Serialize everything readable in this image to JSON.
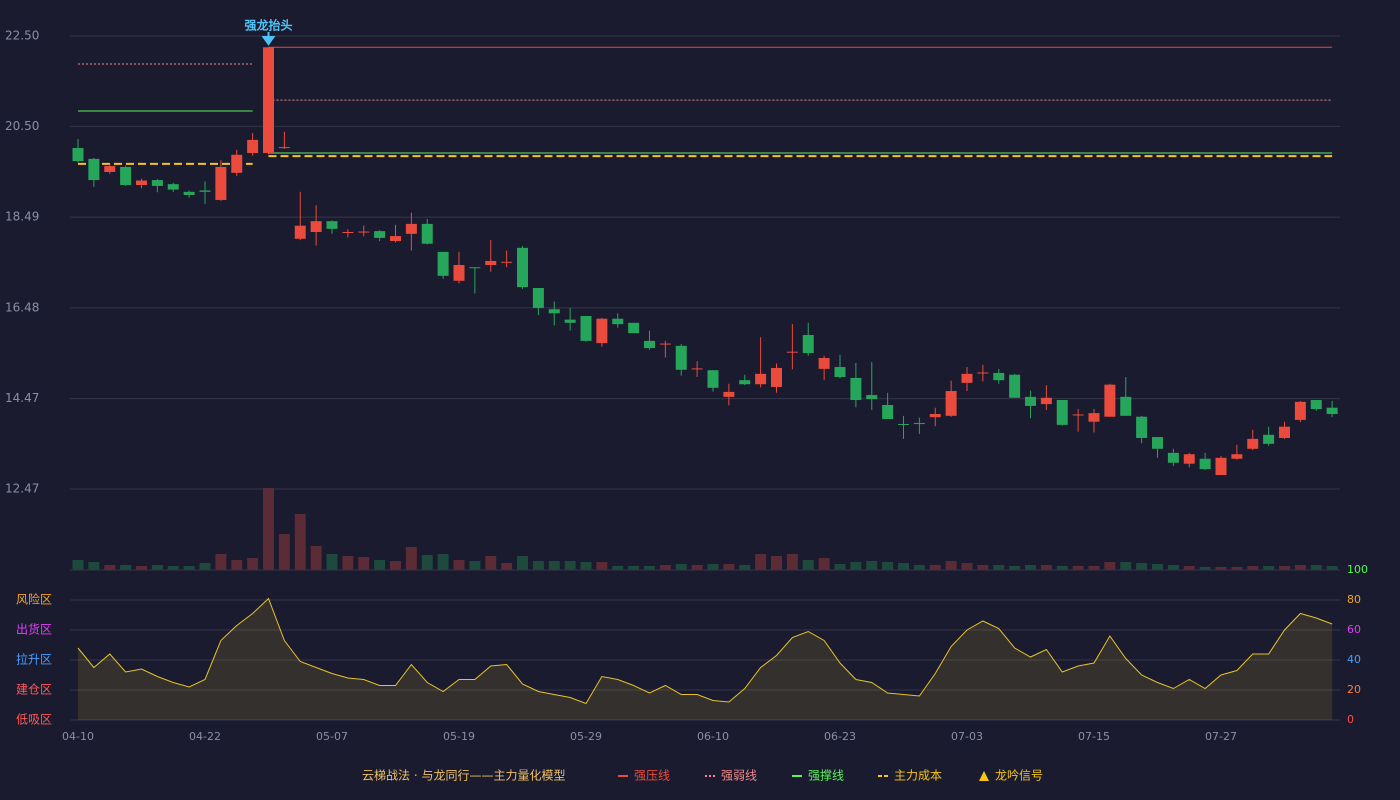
{
  "chart_data": [
    {
      "type": "candlestick",
      "categories": [
        "04-10",
        null,
        null,
        null,
        null,
        null,
        null,
        null,
        "04-22",
        null,
        null,
        null,
        null,
        null,
        null,
        null,
        "05-07",
        null,
        null,
        null,
        null,
        null,
        null,
        null,
        "05-19",
        null,
        null,
        null,
        null,
        null,
        null,
        null,
        "05-29",
        null,
        null,
        null,
        null,
        null,
        null,
        null,
        "06-10",
        null,
        null,
        null,
        null,
        null,
        null,
        null,
        "06-23",
        null,
        null,
        null,
        null,
        null,
        null,
        null,
        "07-03",
        null,
        null,
        null,
        null,
        null,
        null,
        null,
        "07-15",
        null,
        null,
        null,
        null,
        null,
        null,
        null,
        "07-27",
        null,
        null,
        null,
        null,
        null,
        null,
        null
      ],
      "open": [
        20.02,
        19.78,
        19.49,
        19.6,
        19.2,
        19.31,
        19.22,
        19.05,
        19.08,
        18.87,
        19.47,
        19.91,
        19.91,
        20.02,
        18.01,
        18.16,
        18.4,
        18.14,
        18.15,
        18.18,
        17.96,
        18.12,
        18.34,
        17.72,
        17.08,
        17.38,
        17.43,
        17.48,
        17.81,
        16.92,
        16.45,
        16.22,
        16.3,
        15.7,
        16.24,
        16.15,
        15.75,
        15.67,
        15.64,
        15.12,
        15.1,
        14.51,
        14.88,
        14.79,
        14.73,
        15.49,
        15.88,
        15.13,
        15.17,
        14.93,
        14.55,
        14.33,
        13.91,
        13.93,
        14.06,
        14.09,
        14.82,
        15.03,
        15.04,
        15.0,
        14.51,
        14.35,
        14.44,
        14.1,
        13.96,
        14.07,
        14.51,
        14.07,
        13.62,
        13.27,
        13.03,
        13.14,
        12.78,
        13.14,
        13.36,
        13.67,
        13.6,
        14.0,
        14.44,
        14.27
      ],
      "high": [
        20.22,
        19.8,
        19.66,
        19.63,
        19.34,
        19.33,
        19.25,
        19.08,
        19.28,
        19.75,
        19.98,
        20.35,
        22.25,
        20.38,
        19.05,
        18.75,
        18.42,
        18.22,
        18.3,
        18.2,
        18.32,
        18.59,
        18.45,
        17.72,
        17.72,
        17.38,
        17.98,
        17.75,
        17.85,
        16.92,
        16.62,
        16.48,
        16.3,
        16.26,
        16.36,
        16.15,
        15.98,
        15.75,
        15.68,
        15.3,
        15.1,
        14.8,
        15.0,
        15.83,
        15.25,
        16.12,
        16.15,
        15.42,
        15.44,
        15.26,
        15.28,
        14.6,
        14.09,
        14.05,
        14.27,
        14.87,
        15.17,
        15.22,
        15.13,
        15.02,
        14.65,
        14.77,
        14.44,
        14.24,
        14.24,
        14.8,
        14.95,
        14.09,
        13.62,
        13.36,
        13.27,
        13.27,
        13.2,
        13.45,
        13.78,
        13.85,
        13.96,
        14.42,
        14.44,
        14.42
      ],
      "low": [
        19.7,
        19.16,
        19.45,
        19.18,
        19.13,
        19.04,
        19.05,
        18.92,
        18.78,
        18.85,
        19.4,
        19.85,
        19.88,
        20.0,
        17.98,
        17.86,
        18.12,
        18.04,
        18.06,
        17.96,
        17.93,
        17.75,
        17.88,
        17.12,
        17.02,
        16.8,
        17.28,
        17.38,
        16.9,
        16.32,
        16.09,
        15.98,
        15.73,
        15.62,
        16.04,
        15.92,
        15.55,
        15.38,
        14.98,
        14.95,
        14.63,
        14.32,
        14.77,
        14.72,
        14.6,
        15.12,
        15.42,
        14.88,
        14.92,
        14.28,
        14.22,
        14.02,
        13.58,
        13.69,
        13.86,
        14.07,
        14.64,
        14.85,
        14.8,
        14.49,
        14.04,
        14.22,
        13.87,
        13.74,
        13.72,
        14.07,
        14.09,
        13.48,
        13.16,
        12.98,
        12.95,
        12.89,
        12.78,
        13.12,
        13.33,
        13.43,
        13.58,
        13.95,
        14.2,
        14.06
      ],
      "close": [
        19.73,
        19.31,
        19.62,
        19.2,
        19.3,
        19.18,
        19.1,
        18.98,
        19.05,
        19.6,
        19.87,
        20.2,
        22.25,
        20.04,
        18.3,
        18.4,
        18.23,
        18.16,
        18.17,
        18.03,
        18.07,
        18.34,
        17.9,
        17.19,
        17.43,
        17.36,
        17.52,
        17.5,
        16.94,
        16.48,
        16.36,
        16.15,
        15.75,
        16.24,
        16.12,
        15.92,
        15.59,
        15.69,
        15.11,
        15.14,
        14.71,
        14.62,
        14.79,
        15.02,
        15.15,
        15.51,
        15.48,
        15.37,
        14.95,
        14.44,
        14.46,
        14.02,
        13.9,
        13.91,
        14.13,
        14.64,
        15.02,
        15.05,
        14.88,
        14.49,
        14.31,
        14.49,
        13.89,
        14.12,
        14.15,
        14.78,
        14.09,
        13.6,
        13.36,
        13.05,
        13.24,
        12.91,
        13.16,
        13.24,
        13.58,
        13.47,
        13.85,
        14.4,
        14.24,
        14.13
      ],
      "up_color": "#eb4b3c",
      "down_color": "#26a65b",
      "ylim": [
        12.47,
        22.5
      ],
      "yticks": [
        {
          "value": 22.5,
          "label": "22.50"
        },
        {
          "value": 20.5,
          "label": "20.50"
        },
        18.49,
        16.48,
        14.47,
        12.47
      ],
      "grid": true,
      "volume": {
        "values": [
          10,
          8,
          5,
          5,
          4,
          5,
          4,
          4,
          7,
          16,
          10,
          12,
          82,
          36,
          56,
          24,
          16,
          14,
          13,
          10,
          9,
          23,
          15,
          16,
          10,
          9,
          14,
          7,
          14,
          9,
          9,
          9,
          8,
          8,
          4,
          4,
          4,
          5,
          6,
          5,
          6,
          6,
          5,
          16,
          14,
          16,
          10,
          12,
          6,
          8,
          9,
          8,
          7,
          5,
          5,
          9,
          7,
          5,
          5,
          4,
          5,
          5,
          4,
          4,
          4,
          8,
          8,
          7,
          6,
          5,
          4,
          3,
          3,
          3,
          4,
          4,
          4,
          5,
          5,
          4
        ],
        "ylim": [
          0,
          82
        ],
        "up_color": "#5b2b36",
        "down_color": "#1d4a3c"
      },
      "levels": [
        {
          "name": "强压线",
          "color": "#eb4b3c",
          "style": "solid",
          "values": [
            null,
            null,
            null,
            null,
            null,
            null,
            null,
            null,
            null,
            null,
            null,
            null,
            22.25,
            22.25,
            22.25,
            22.25,
            22.25,
            22.25,
            22.25,
            22.25,
            22.25,
            22.25,
            22.25,
            22.25,
            22.25,
            22.25,
            22.25,
            22.25,
            22.25,
            22.25,
            22.25,
            22.25,
            22.25,
            22.25,
            22.25,
            22.25,
            22.25,
            22.25,
            22.25,
            22.25,
            22.25,
            22.25,
            22.25,
            22.25,
            22.25,
            22.25,
            22.25,
            22.25,
            22.25,
            22.25,
            22.25,
            22.25,
            22.25,
            22.25,
            22.25,
            22.25,
            22.25,
            22.25,
            22.25,
            22.25,
            22.25,
            22.25,
            22.25,
            22.25,
            22.25,
            22.25,
            22.25,
            22.25,
            22.25,
            22.25,
            22.25,
            22.25,
            22.25,
            22.25,
            22.25,
            22.25,
            22.25,
            22.25,
            22.25,
            22.25
          ]
        },
        {
          "name": "强弱线",
          "color": "#f08a8a",
          "style": "dotted",
          "values": [
            21.88,
            21.88,
            21.88,
            21.88,
            21.88,
            21.88,
            21.88,
            21.88,
            21.88,
            21.88,
            21.88,
            21.88,
            21.08,
            21.08,
            21.08,
            21.08,
            21.08,
            21.08,
            21.08,
            21.08,
            21.08,
            21.08,
            21.08,
            21.08,
            21.08,
            21.08,
            21.08,
            21.08,
            21.08,
            21.08,
            21.08,
            21.08,
            21.08,
            21.08,
            21.08,
            21.08,
            21.08,
            21.08,
            21.08,
            21.08,
            21.08,
            21.08,
            21.08,
            21.08,
            21.08,
            21.08,
            21.08,
            21.08,
            21.08,
            21.08,
            21.08,
            21.08,
            21.08,
            21.08,
            21.08,
            21.08,
            21.08,
            21.08,
            21.08,
            21.08,
            21.08,
            21.08,
            21.08,
            21.08,
            21.08,
            21.08,
            21.08,
            21.08,
            21.08,
            21.08,
            21.08,
            21.08,
            21.08,
            21.08,
            21.08,
            21.08,
            21.08,
            21.08,
            21.08,
            21.08
          ]
        },
        {
          "name": "强撑线",
          "color": "#5cf25c",
          "style": "solid",
          "values": [
            20.84,
            20.84,
            20.84,
            20.84,
            20.84,
            20.84,
            20.84,
            20.84,
            20.84,
            20.84,
            20.84,
            20.84,
            19.91,
            19.91,
            19.91,
            19.91,
            19.91,
            19.91,
            19.91,
            19.91,
            19.91,
            19.91,
            19.91,
            19.91,
            19.91,
            19.91,
            19.91,
            19.91,
            19.91,
            19.91,
            19.91,
            19.91,
            19.91,
            19.91,
            19.91,
            19.91,
            19.91,
            19.91,
            19.91,
            19.91,
            19.91,
            19.91,
            19.91,
            19.91,
            19.91,
            19.91,
            19.91,
            19.91,
            19.91,
            19.91,
            19.91,
            19.91,
            19.91,
            19.91,
            19.91,
            19.91,
            19.91,
            19.91,
            19.91,
            19.91,
            19.91,
            19.91,
            19.91,
            19.91,
            19.91,
            19.91,
            19.91,
            19.91,
            19.91,
            19.91,
            19.91,
            19.91,
            19.91,
            19.91,
            19.91,
            19.91,
            19.91,
            19.91,
            19.91,
            19.91
          ]
        },
        {
          "name": "主力成本",
          "color": "#f5c518",
          "style": "dashed",
          "values": [
            19.67,
            19.67,
            19.67,
            19.67,
            19.67,
            19.67,
            19.67,
            19.67,
            19.67,
            19.67,
            19.67,
            19.67,
            19.84,
            19.84,
            19.84,
            19.84,
            19.84,
            19.84,
            19.84,
            19.84,
            19.84,
            19.84,
            19.84,
            19.84,
            19.84,
            19.84,
            19.84,
            19.84,
            19.84,
            19.84,
            19.84,
            19.84,
            19.84,
            19.84,
            19.84,
            19.84,
            19.84,
            19.84,
            19.84,
            19.84,
            19.84,
            19.84,
            19.84,
            19.84,
            19.84,
            19.84,
            19.84,
            19.84,
            19.84,
            19.84,
            19.84,
            19.84,
            19.84,
            19.84,
            19.84,
            19.84,
            19.84,
            19.84,
            19.84,
            19.84,
            19.84,
            19.84,
            19.84,
            19.84,
            19.84,
            19.84,
            19.84,
            19.84,
            19.84,
            19.84,
            19.84,
            19.84,
            19.84,
            19.84,
            19.84,
            19.84,
            19.84,
            19.84,
            19.84,
            19.84
          ]
        }
      ],
      "signal_labels": [
        null,
        null,
        null,
        null,
        null,
        null,
        null,
        null,
        null,
        null,
        null,
        null,
        "强龙抬头",
        null,
        null,
        null,
        null,
        null,
        null,
        null,
        null,
        null,
        null,
        null,
        null,
        null,
        null,
        null,
        null,
        null,
        null,
        null,
        null,
        null,
        null,
        null,
        null,
        null,
        null,
        null,
        null,
        null,
        null,
        null,
        null,
        null,
        null,
        null,
        null,
        null,
        null,
        null,
        null,
        null,
        null,
        null,
        null,
        null,
        null,
        null,
        null,
        null,
        null,
        null,
        null,
        null,
        null,
        null,
        null,
        null,
        null,
        null,
        null,
        null,
        null,
        null,
        null,
        null,
        null,
        null
      ],
      "signal_label_color": "#4fc3f7",
      "legend_title": "云梯战法 · 与龙同行——主力量化模型",
      "legend_title_color": "#f0c060",
      "signal": {
        "name": "龙吟信号",
        "color": "#f5c518"
      }
    },
    {
      "type": "line",
      "series": [
        {
          "color": "#e6c229",
          "values": [
            48,
            35,
            44,
            32,
            34,
            29,
            25,
            22,
            27,
            53,
            63,
            71,
            81,
            53,
            39,
            35,
            31,
            28,
            27,
            23,
            23,
            37,
            25,
            19,
            27,
            27,
            36,
            37,
            24,
            19,
            17,
            15,
            11,
            29,
            27,
            23,
            18,
            23,
            17,
            17,
            13,
            12,
            21,
            35,
            43,
            55,
            59,
            53,
            38,
            27,
            25,
            18,
            17,
            16,
            31,
            49,
            60,
            66,
            61,
            48,
            42,
            47,
            32,
            36,
            38,
            56,
            41,
            30,
            25,
            21,
            27,
            21,
            30,
            33,
            44,
            44,
            60,
            71,
            68,
            64
          ]
        }
      ],
      "fill": true,
      "ylim": [
        0,
        100
      ],
      "yticks": [
        0,
        20,
        40,
        60,
        80,
        100
      ],
      "ytick_colors": [
        "#ff4d4d",
        "#ff7a45",
        "#4a9fff",
        "#e040fb",
        "#f5a623",
        "#4cff4c"
      ],
      "grid": true,
      "zones": [
        {
          "label": "风险区",
          "value": 80,
          "color": "#f5a623"
        },
        {
          "label": "出货区",
          "value": 60,
          "color": "#e040fb"
        },
        {
          "label": "拉升区",
          "value": 40,
          "color": "#4a9fff"
        },
        {
          "label": "建仓区",
          "value": 20,
          "color": "#ff5a5a"
        },
        {
          "label": "低吸区",
          "value": 0,
          "color": "#ff5a5a"
        }
      ]
    }
  ]
}
